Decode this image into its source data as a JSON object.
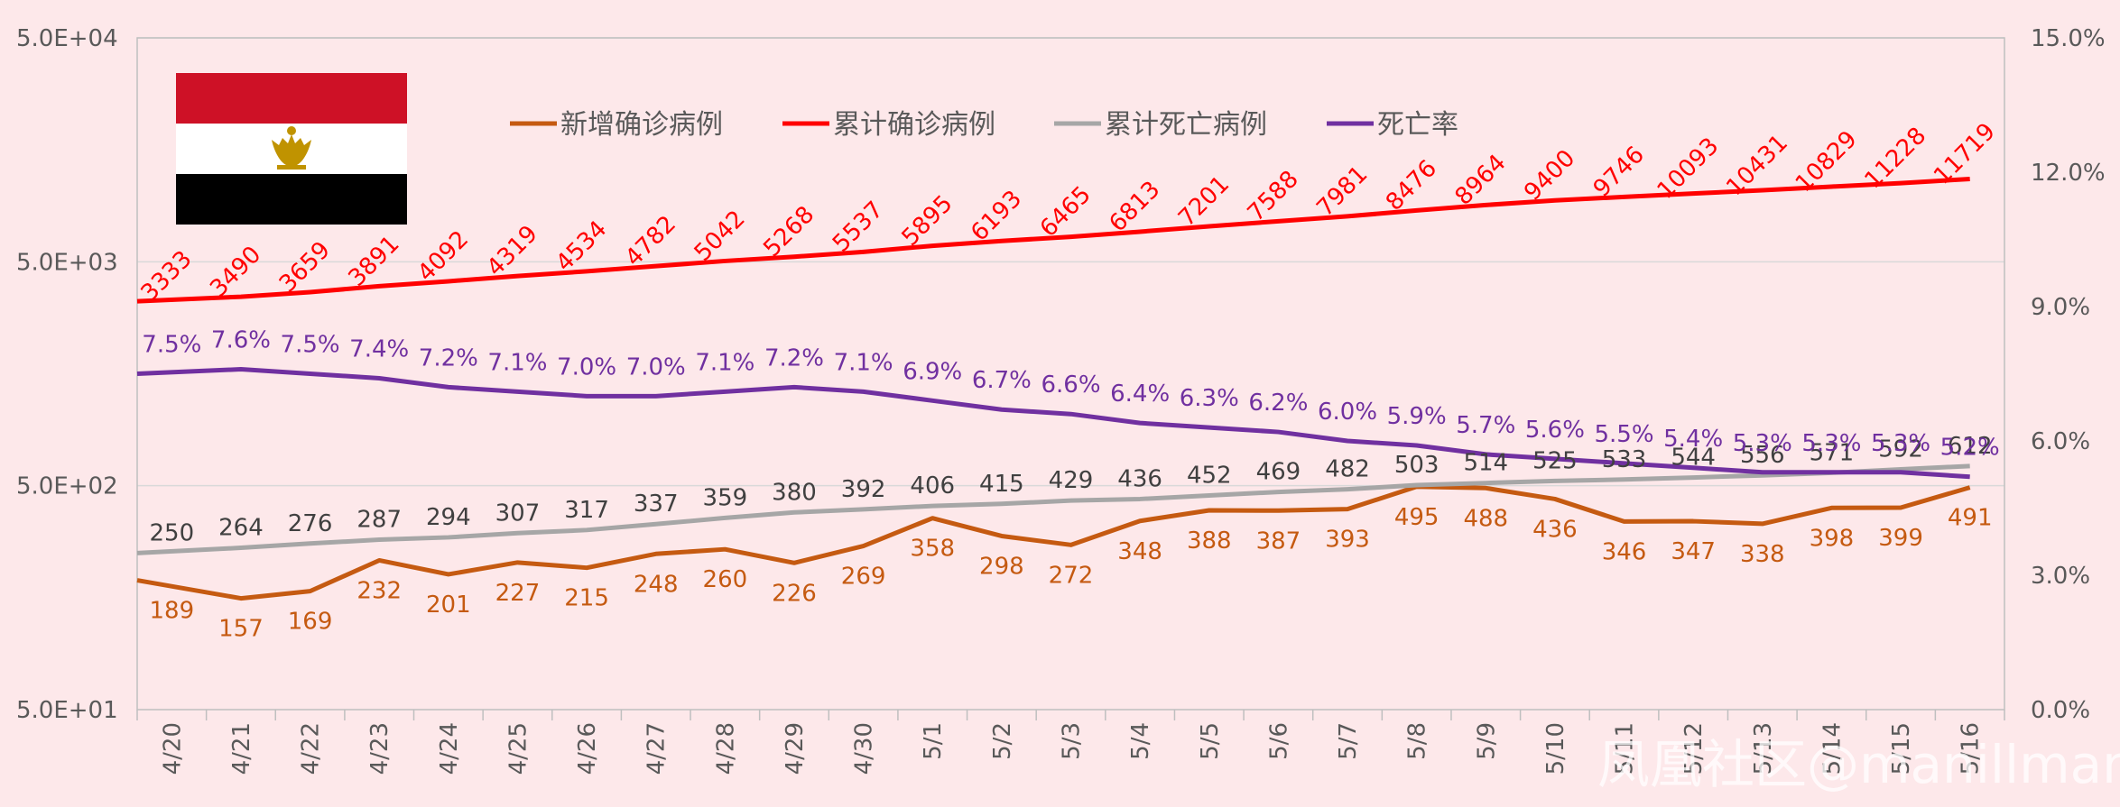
{
  "watermark": "凤凰社区@manillman",
  "flag": {
    "colors": [
      "#ce1126",
      "#ffffff",
      "#000000"
    ],
    "emblem_color": "#c09300",
    "icon": "egypt-flag"
  },
  "chart_data": {
    "type": "line",
    "categories": [
      "4/20",
      "4/21",
      "4/22",
      "4/23",
      "4/24",
      "4/25",
      "4/26",
      "4/27",
      "4/28",
      "4/29",
      "4/30",
      "5/1",
      "5/2",
      "5/3",
      "5/4",
      "5/5",
      "5/6",
      "5/7",
      "5/8",
      "5/9",
      "5/10",
      "5/11",
      "5/12",
      "5/13",
      "5/14",
      "5/15",
      "5/16"
    ],
    "y_left": {
      "scale": "log",
      "min": 50,
      "max": 50000,
      "ticks": [
        50,
        500,
        5000,
        50000
      ],
      "tick_labels": [
        "5.0E+01",
        "5.0E+02",
        "5.0E+03",
        "5.0E+04"
      ]
    },
    "y_right": {
      "scale": "linear",
      "min": 0,
      "max": 15,
      "ticks": [
        0,
        3,
        6,
        9,
        12,
        15
      ],
      "tick_labels": [
        "0.0%",
        "3.0%",
        "6.0%",
        "9.0%",
        "12.0%",
        "15.0%"
      ]
    },
    "grid": true,
    "legend_position": "top",
    "series": [
      {
        "name": "新增确诊病例",
        "axis": "left",
        "color": "#c55a11",
        "values": [
          189,
          157,
          169,
          232,
          201,
          227,
          215,
          248,
          260,
          226,
          269,
          358,
          298,
          272,
          348,
          388,
          387,
          393,
          495,
          488,
          436,
          346,
          347,
          338,
          398,
          399,
          491
        ],
        "labels": [
          "189",
          "157",
          "169",
          "232",
          "201",
          "227",
          "215",
          "248",
          "260",
          "226",
          "269",
          "358",
          "298",
          "272",
          "348",
          "388",
          "387",
          "393",
          "495",
          "488",
          "436",
          "346",
          "347",
          "338",
          "398",
          "399",
          "491"
        ]
      },
      {
        "name": "累计确诊病例",
        "axis": "left",
        "color": "#ff0000",
        "values": [
          3333,
          3490,
          3659,
          3891,
          4092,
          4319,
          4534,
          4782,
          5042,
          5268,
          5537,
          5895,
          6193,
          6465,
          6813,
          7201,
          7588,
          7981,
          8476,
          8964,
          9400,
          9746,
          10093,
          10431,
          10829,
          11228,
          11719
        ],
        "labels": [
          "3333",
          "3490",
          "3659",
          "3891",
          "4092",
          "4319",
          "4534",
          "4782",
          "5042",
          "5268",
          "5537",
          "5895",
          "6193",
          "6465",
          "6813",
          "7201",
          "7588",
          "7981",
          "8476",
          "8964",
          "9400",
          "9746",
          "10093",
          "10431",
          "10829",
          "11228",
          "11719"
        ]
      },
      {
        "name": "累计死亡病例",
        "axis": "left",
        "color": "#a6a6a6",
        "label_color": "#404040",
        "values": [
          250,
          264,
          276,
          287,
          294,
          307,
          317,
          337,
          359,
          380,
          392,
          406,
          415,
          429,
          436,
          452,
          469,
          482,
          503,
          514,
          525,
          533,
          544,
          556,
          571,
          592,
          612
        ],
        "labels": [
          "250",
          "264",
          "276",
          "287",
          "294",
          "307",
          "317",
          "337",
          "359",
          "380",
          "392",
          "406",
          "415",
          "429",
          "436",
          "452",
          "469",
          "482",
          "503",
          "514",
          "525",
          "533",
          "544",
          "556",
          "571",
          "592",
          "612"
        ]
      },
      {
        "name": "死亡率",
        "axis": "right",
        "color": "#7030a0",
        "values": [
          7.5,
          7.6,
          7.5,
          7.4,
          7.2,
          7.1,
          7.0,
          7.0,
          7.1,
          7.2,
          7.1,
          6.9,
          6.7,
          6.6,
          6.4,
          6.3,
          6.2,
          6.0,
          5.9,
          5.7,
          5.6,
          5.5,
          5.4,
          5.3,
          5.3,
          5.3,
          5.2
        ],
        "labels": [
          "7.5%",
          "7.6%",
          "7.5%",
          "7.4%",
          "7.2%",
          "7.1%",
          "7.0%",
          "7.0%",
          "7.1%",
          "7.2%",
          "7.1%",
          "6.9%",
          "6.7%",
          "6.6%",
          "6.4%",
          "6.3%",
          "6.2%",
          "6.0%",
          "5.9%",
          "5.7%",
          "5.6%",
          "5.5%",
          "5.4%",
          "5.3%",
          "5.3%",
          "5.3%",
          "5.2%"
        ]
      }
    ]
  }
}
